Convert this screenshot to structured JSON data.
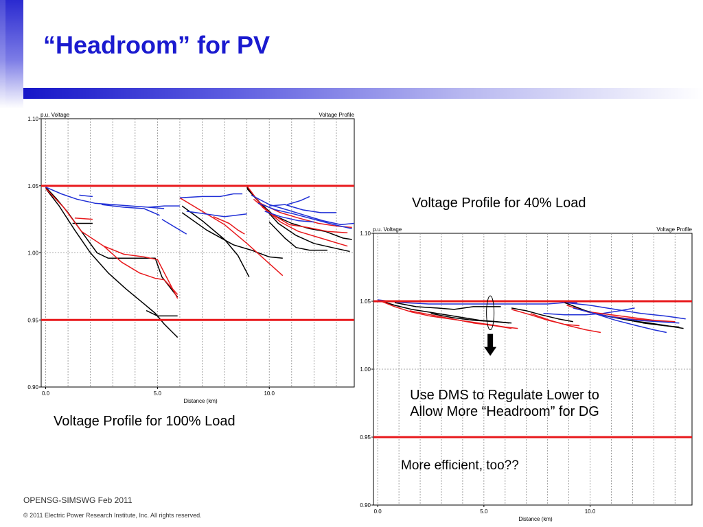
{
  "slide": {
    "title": "“Headroom” for PV",
    "caption_100": "Voltage Profile for 100% Load",
    "caption_40": "Voltage Profile for 40% Load",
    "annotation_lines": [
      "Use DMS to Regulate Lower to",
      "Allow More “Headroom” for DG"
    ],
    "annotation_2": "More efficient, too??",
    "footer_org": "OPENSG-SIMSWG Feb 2011",
    "footer_copyright": "© 2011 Electric Power Research Institute, Inc. All rights reserved."
  },
  "colors": {
    "title": "#1a1acf",
    "limit_line": "#e8191c",
    "series_black": "#000000",
    "series_red": "#e8191c",
    "series_blue": "#1f2fd6",
    "arrow": "#000000"
  },
  "chart_data": [
    {
      "type": "line",
      "title": "Voltage Profile",
      "ylabel": "p.u. Voltage",
      "xlabel": "Distance (km)",
      "xlim": [
        -0.2,
        13.8
      ],
      "ylim": [
        0.9,
        1.1
      ],
      "xticks": [
        "0.0",
        "5.0",
        "10.0"
      ],
      "xtick_values": [
        0,
        5,
        10
      ],
      "yticks": [
        "0.90",
        "0.95",
        "1.00",
        "1.05",
        "1.10"
      ],
      "ytick_values": [
        0.9,
        0.95,
        1.0,
        1.05,
        1.1
      ],
      "limits": [
        1.05,
        0.95
      ],
      "series": [
        {
          "color": "black",
          "x": [
            0,
            0.6,
            1.3,
            2.0,
            2.8,
            3.6,
            4.4,
            4.9,
            5.3,
            5.9
          ],
          "y": [
            1.048,
            1.035,
            1.017,
            1.0,
            0.985,
            0.973,
            0.962,
            0.955,
            0.947,
            0.937
          ]
        },
        {
          "color": "black",
          "x": [
            0,
            0.5,
            1.0,
            1.6,
            2.3,
            2.8
          ],
          "y": [
            1.049,
            1.04,
            1.03,
            1.016,
            1.0,
            0.996
          ]
        },
        {
          "color": "black",
          "x": [
            2.8,
            3.8,
            4.9,
            5.2,
            5.9
          ],
          "y": [
            0.996,
            0.996,
            0.996,
            0.982,
            0.967
          ]
        },
        {
          "color": "black",
          "x": [
            4.5,
            5.0,
            5.9
          ],
          "y": [
            0.957,
            0.953,
            0.953
          ]
        },
        {
          "color": "black",
          "x": [
            1.2,
            2.1
          ],
          "y": [
            1.022,
            1.022
          ]
        },
        {
          "color": "red",
          "x": [
            0,
            0.8,
            1.6,
            2.6,
            3.5,
            4.4,
            5.0,
            5.9
          ],
          "y": [
            1.048,
            1.034,
            1.016,
            1.005,
            0.999,
            0.997,
            0.995,
            0.966
          ]
        },
        {
          "color": "red",
          "x": [
            2.6,
            3.4,
            4.2,
            4.9,
            5.3
          ],
          "y": [
            1.005,
            0.993,
            0.985,
            0.981,
            0.98
          ]
        },
        {
          "color": "red",
          "x": [
            5.3,
            5.9
          ],
          "y": [
            0.98,
            0.969
          ]
        },
        {
          "color": "red",
          "x": [
            1.3,
            2.1
          ],
          "y": [
            1.026,
            1.025
          ]
        },
        {
          "color": "blue",
          "x": [
            0,
            0.7,
            1.4,
            2.2,
            3.0,
            3.8,
            4.6,
            5.3
          ],
          "y": [
            1.049,
            1.044,
            1.04,
            1.037,
            1.036,
            1.035,
            1.034,
            1.033
          ]
        },
        {
          "color": "blue",
          "x": [
            4.6,
            5.3,
            6.0
          ],
          "y": [
            1.034,
            1.035,
            1.035
          ]
        },
        {
          "color": "blue",
          "x": [
            1.5,
            2.1
          ],
          "y": [
            1.043,
            1.042
          ]
        },
        {
          "color": "blue",
          "x": [
            2.5,
            3.5,
            4.4,
            5.1
          ],
          "y": [
            1.036,
            1.034,
            1.033,
            1.028
          ]
        },
        {
          "color": "blue",
          "x": [
            5.2,
            6.3
          ],
          "y": [
            1.025,
            1.014
          ]
        },
        {
          "color": "black",
          "x": [
            6.1,
            7.0,
            8.0,
            8.6,
            9.1
          ],
          "y": [
            1.035,
            1.024,
            1.01,
            0.998,
            0.982
          ]
        },
        {
          "color": "black",
          "x": [
            6.1,
            7.2,
            8.4,
            9.2,
            10.0,
            10.6
          ],
          "y": [
            1.03,
            1.017,
            1.006,
            1.002,
            0.997,
            0.996
          ]
        },
        {
          "color": "red",
          "x": [
            6.0,
            7.0,
            8.0,
            9.0,
            10.0,
            10.6
          ],
          "y": [
            1.041,
            1.031,
            1.021,
            1.007,
            0.992,
            0.983
          ]
        },
        {
          "color": "red",
          "x": [
            7.5,
            8.2,
            8.6,
            8.9
          ],
          "y": [
            1.027,
            1.022,
            1.017,
            1.014
          ]
        },
        {
          "color": "blue",
          "x": [
            6.0,
            7.0,
            7.8,
            8.4,
            8.8
          ],
          "y": [
            1.041,
            1.042,
            1.042,
            1.044,
            1.044
          ]
        },
        {
          "color": "blue",
          "x": [
            6.3,
            8.0,
            9.0
          ],
          "y": [
            1.031,
            1.027,
            1.029
          ]
        },
        {
          "color": "black",
          "x": [
            9.0,
            9.6,
            10.2,
            11.0,
            11.8,
            12.5,
            13.3,
            13.7
          ],
          "y": [
            1.049,
            1.037,
            1.028,
            1.022,
            1.018,
            1.016,
            1.011,
            1.01
          ]
        },
        {
          "color": "black",
          "x": [
            9.0,
            9.8,
            10.4,
            11.2,
            12.0,
            12.8,
            13.6
          ],
          "y": [
            1.048,
            1.033,
            1.022,
            1.013,
            1.007,
            1.004,
            1.001
          ]
        },
        {
          "color": "black",
          "x": [
            10.0,
            10.7,
            11.2,
            11.8,
            12.6
          ],
          "y": [
            1.023,
            1.011,
            1.004,
            1.002,
            1.002
          ]
        },
        {
          "color": "red",
          "x": [
            9.0,
            9.7,
            10.5,
            11.3,
            12.1,
            12.9,
            13.5
          ],
          "y": [
            1.05,
            1.034,
            1.023,
            1.016,
            1.012,
            1.008,
            1.005
          ]
        },
        {
          "color": "red",
          "x": [
            9.3,
            10.1,
            10.9,
            11.7,
            12.6,
            13.5
          ],
          "y": [
            1.04,
            1.029,
            1.021,
            1.019,
            1.016,
            1.015
          ]
        },
        {
          "color": "red",
          "x": [
            9.6,
            10.5,
            11.3,
            12.2,
            13.0,
            13.7
          ],
          "y": [
            1.037,
            1.03,
            1.026,
            1.022,
            1.02,
            1.019
          ]
        },
        {
          "color": "blue",
          "x": [
            9.2,
            10.0,
            10.8,
            11.6,
            12.4,
            13.2,
            13.8
          ],
          "y": [
            1.043,
            1.036,
            1.032,
            1.028,
            1.024,
            1.021,
            1.022
          ]
        },
        {
          "color": "blue",
          "x": [
            9.5,
            10.3,
            11.1,
            12.0,
            12.9,
            13.7
          ],
          "y": [
            1.037,
            1.032,
            1.029,
            1.025,
            1.021,
            1.018
          ]
        },
        {
          "color": "blue",
          "x": [
            10.0,
            10.7,
            11.5,
            12.3,
            13.0
          ],
          "y": [
            1.035,
            1.036,
            1.032,
            1.03,
            1.03
          ]
        },
        {
          "color": "blue",
          "x": [
            10.8,
            11.4,
            11.8
          ],
          "y": [
            1.036,
            1.039,
            1.042
          ]
        },
        {
          "color": "blue",
          "x": [
            9.8,
            10.5,
            11.3,
            12.0
          ],
          "y": [
            1.031,
            1.027,
            1.024,
            1.023
          ]
        }
      ]
    },
    {
      "type": "line",
      "title": "Voltage Profile",
      "ylabel": "p.u. Voltage",
      "xlabel": "Distance (km)",
      "xlim": [
        -0.2,
        14.8
      ],
      "ylim": [
        0.9,
        1.1
      ],
      "xticks": [
        "0.0",
        "5.0",
        "10.0"
      ],
      "xtick_values": [
        0,
        5,
        10
      ],
      "yticks": [
        "0.90",
        "0.95",
        "1.00",
        "1.05",
        "1.10"
      ],
      "ytick_values": [
        0.9,
        0.95,
        1.0,
        1.05,
        1.1
      ],
      "limits": [
        1.05,
        0.95
      ],
      "series": [
        {
          "color": "black",
          "x": [
            0,
            0.8,
            1.6,
            2.4,
            3.2,
            4.0,
            4.8,
            5.6,
            6.3
          ],
          "y": [
            1.051,
            1.047,
            1.044,
            1.042,
            1.04,
            1.038,
            1.036,
            1.035,
            1.034
          ]
        },
        {
          "color": "black",
          "x": [
            0.8,
            1.8,
            2.8,
            3.6,
            4.5,
            5.2,
            5.8
          ],
          "y": [
            1.049,
            1.046,
            1.045,
            1.044,
            1.046,
            1.046,
            1.046
          ]
        },
        {
          "color": "black",
          "x": [
            2.5,
            3.5,
            4.5,
            5.5,
            6.2
          ],
          "y": [
            1.041,
            1.038,
            1.036,
            1.035,
            1.034
          ]
        },
        {
          "color": "red",
          "x": [
            0,
            0.8,
            1.6,
            2.5,
            3.4,
            4.3,
            5.2,
            6.0,
            6.6
          ],
          "y": [
            1.051,
            1.046,
            1.042,
            1.039,
            1.037,
            1.035,
            1.033,
            1.031,
            1.03
          ]
        },
        {
          "color": "red",
          "x": [
            1.5,
            2.5,
            3.5,
            4.5,
            5.5,
            6.3
          ],
          "y": [
            1.043,
            1.04,
            1.037,
            1.034,
            1.032,
            1.03
          ]
        },
        {
          "color": "blue",
          "x": [
            0,
            1.2,
            2.4,
            3.6,
            4.8,
            5.6,
            6.4,
            7.2,
            8.0,
            8.8,
            9.4
          ],
          "y": [
            1.051,
            1.049,
            1.048,
            1.048,
            1.048,
            1.048,
            1.048,
            1.048,
            1.048,
            1.049,
            1.049
          ]
        },
        {
          "color": "black",
          "x": [
            6.3,
            7.0,
            7.7,
            8.5,
            9.2
          ],
          "y": [
            1.045,
            1.043,
            1.04,
            1.037,
            1.035
          ]
        },
        {
          "color": "red",
          "x": [
            6.3,
            7.2,
            8.0,
            8.8,
            9.5
          ],
          "y": [
            1.044,
            1.04,
            1.036,
            1.033,
            1.032
          ]
        },
        {
          "color": "red",
          "x": [
            7.2,
            8.1,
            9.0,
            9.8,
            10.5
          ],
          "y": [
            1.041,
            1.036,
            1.032,
            1.029,
            1.027
          ]
        },
        {
          "color": "blue",
          "x": [
            7.8,
            8.8,
            9.8,
            10.6,
            11.4,
            12.1
          ],
          "y": [
            1.041,
            1.04,
            1.04,
            1.041,
            1.043,
            1.045
          ]
        },
        {
          "color": "blue",
          "x": [
            8.8,
            10.0,
            11.2,
            12.4,
            13.6,
            14.5
          ],
          "y": [
            1.049,
            1.047,
            1.044,
            1.041,
            1.039,
            1.037
          ]
        },
        {
          "color": "black",
          "x": [
            8.8,
            9.8,
            10.8,
            11.8,
            12.8,
            13.6,
            14.4
          ],
          "y": [
            1.049,
            1.043,
            1.039,
            1.036,
            1.034,
            1.032,
            1.03
          ]
        },
        {
          "color": "black",
          "x": [
            9.5,
            10.5,
            11.5,
            12.5,
            13.5,
            14.2
          ],
          "y": [
            1.044,
            1.04,
            1.037,
            1.034,
            1.032,
            1.031
          ]
        },
        {
          "color": "red",
          "x": [
            8.9,
            9.9,
            10.9,
            11.9,
            12.9,
            13.7
          ],
          "y": [
            1.047,
            1.042,
            1.039,
            1.037,
            1.036,
            1.035
          ]
        },
        {
          "color": "red",
          "x": [
            10.0,
            11.0,
            12.0,
            13.0,
            14.0
          ],
          "y": [
            1.042,
            1.04,
            1.038,
            1.036,
            1.035
          ]
        },
        {
          "color": "blue",
          "x": [
            9.2,
            10.2,
            11.2,
            12.2,
            13.0,
            13.6
          ],
          "y": [
            1.045,
            1.041,
            1.036,
            1.032,
            1.029,
            1.027
          ]
        },
        {
          "color": "blue",
          "x": [
            10.2,
            11.2,
            12.2,
            13.2,
            14.2
          ],
          "y": [
            1.041,
            1.038,
            1.036,
            1.035,
            1.034
          ]
        }
      ]
    }
  ]
}
